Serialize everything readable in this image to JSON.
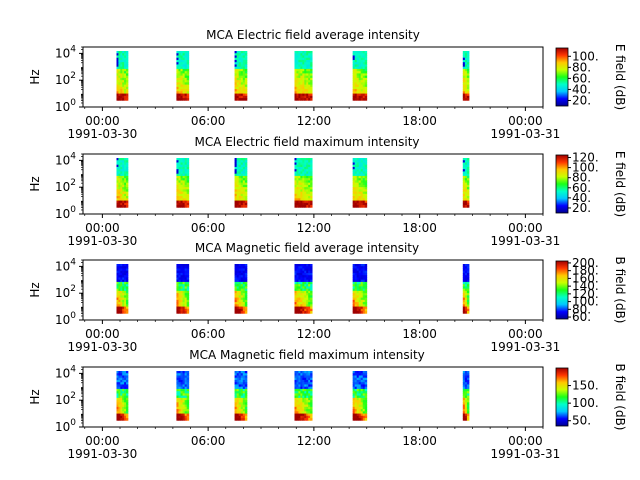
{
  "colors": {
    "background": "#ffffff",
    "axis": "#000000",
    "colormap": [
      "#00008f",
      "#0000ff",
      "#00c8ff",
      "#00ffc8",
      "#19ff19",
      "#c8ff00",
      "#ffc800",
      "#ff3700",
      "#a00000"
    ]
  },
  "chart_data": [
    {
      "type": "heatmap",
      "title": "MCA  Electric field average intensity",
      "ylabel": "Hz",
      "y_scale": "log",
      "ylim": [
        1,
        30000
      ],
      "y_ticks": [
        {
          "base": "10",
          "exp": "0"
        },
        {
          "base": "10",
          "exp": "2"
        },
        {
          "base": "10",
          "exp": "4"
        }
      ],
      "x_ticks": [
        "00:00",
        "06:00",
        "12:00",
        "18:00",
        "00:00"
      ],
      "x_tick_hours": [
        0,
        6,
        12,
        18,
        24
      ],
      "x_date_labels": [
        "1991-03-30",
        "1991-03-31"
      ],
      "xlim_hours": [
        -1.1,
        25.0
      ],
      "colorbar": {
        "label": "E field (dB)",
        "range": [
          10,
          115
        ],
        "ticks": [
          "20.",
          "40.",
          "60.",
          "80.",
          "100."
        ],
        "tick_values": [
          20,
          40,
          60,
          80,
          100
        ]
      },
      "bursts_hours": [
        [
          0.8,
          1.45
        ],
        [
          4.2,
          4.9
        ],
        [
          7.5,
          8.2
        ],
        [
          10.9,
          11.9
        ],
        [
          14.2,
          15.0
        ],
        [
          20.45,
          20.8
        ]
      ]
    },
    {
      "type": "heatmap",
      "title": "MCA  Electric field maximum intensity",
      "ylabel": "Hz",
      "y_scale": "log",
      "ylim": [
        1,
        30000
      ],
      "y_ticks": [
        {
          "base": "10",
          "exp": "0"
        },
        {
          "base": "10",
          "exp": "2"
        },
        {
          "base": "10",
          "exp": "4"
        }
      ],
      "x_ticks": [
        "00:00",
        "06:00",
        "12:00",
        "18:00",
        "00:00"
      ],
      "x_tick_hours": [
        0,
        6,
        12,
        18,
        24
      ],
      "x_date_labels": [
        "1991-03-30",
        "1991-03-31"
      ],
      "xlim_hours": [
        -1.1,
        25.0
      ],
      "colorbar": {
        "label": "E field (dB)",
        "range": [
          10,
          125
        ],
        "ticks": [
          "20.",
          "40.",
          "60.",
          "80.",
          "100.",
          "120."
        ],
        "tick_values": [
          20,
          40,
          60,
          80,
          100,
          120
        ]
      },
      "bursts_hours": [
        [
          0.8,
          1.45
        ],
        [
          4.2,
          4.9
        ],
        [
          7.5,
          8.2
        ],
        [
          10.9,
          11.9
        ],
        [
          14.2,
          15.0
        ],
        [
          20.45,
          20.8
        ]
      ]
    },
    {
      "type": "heatmap",
      "title": "MCA  Magnetic field average intensity",
      "ylabel": "Hz",
      "y_scale": "log",
      "ylim": [
        1,
        30000
      ],
      "y_ticks": [
        {
          "base": "10",
          "exp": "0"
        },
        {
          "base": "10",
          "exp": "2"
        },
        {
          "base": "10",
          "exp": "4"
        }
      ],
      "x_ticks": [
        "00:00",
        "06:00",
        "12:00",
        "18:00",
        "00:00"
      ],
      "x_tick_hours": [
        0,
        6,
        12,
        18,
        24
      ],
      "x_date_labels": [
        "1991-03-30",
        "1991-03-31"
      ],
      "xlim_hours": [
        -1.1,
        25.0
      ],
      "colorbar": {
        "label": "B field (dB)",
        "range": [
          55,
          205
        ],
        "ticks": [
          "60.",
          "80.",
          "100.",
          "120.",
          "140.",
          "160.",
          "180.",
          "200."
        ],
        "tick_values": [
          60,
          80,
          100,
          120,
          140,
          160,
          180,
          200
        ]
      },
      "bursts_hours": [
        [
          0.8,
          1.45
        ],
        [
          4.2,
          4.9
        ],
        [
          7.5,
          8.2
        ],
        [
          10.9,
          11.9
        ],
        [
          14.2,
          15.0
        ],
        [
          20.45,
          20.8
        ]
      ]
    },
    {
      "type": "heatmap",
      "title": "MCA  Magnetic field maximum intensity",
      "ylabel": "Hz",
      "y_scale": "log",
      "ylim": [
        1,
        30000
      ],
      "y_ticks": [
        {
          "base": "10",
          "exp": "0"
        },
        {
          "base": "10",
          "exp": "2"
        },
        {
          "base": "10",
          "exp": "4"
        }
      ],
      "x_ticks": [
        "00:00",
        "06:00",
        "12:00",
        "18:00",
        "00:00"
      ],
      "x_tick_hours": [
        0,
        6,
        12,
        18,
        24
      ],
      "x_date_labels": [
        "1991-03-30",
        "1991-03-31"
      ],
      "xlim_hours": [
        -1.1,
        25.0
      ],
      "colorbar": {
        "label": "B field (dB)",
        "range": [
          35,
          200
        ],
        "ticks": [
          "50.",
          "100.",
          "150."
        ],
        "tick_values": [
          50,
          100,
          150
        ]
      },
      "bursts_hours": [
        [
          0.8,
          1.45
        ],
        [
          4.2,
          4.9
        ],
        [
          7.5,
          8.2
        ],
        [
          10.9,
          11.9
        ],
        [
          14.2,
          15.0
        ],
        [
          20.45,
          20.8
        ]
      ]
    }
  ]
}
